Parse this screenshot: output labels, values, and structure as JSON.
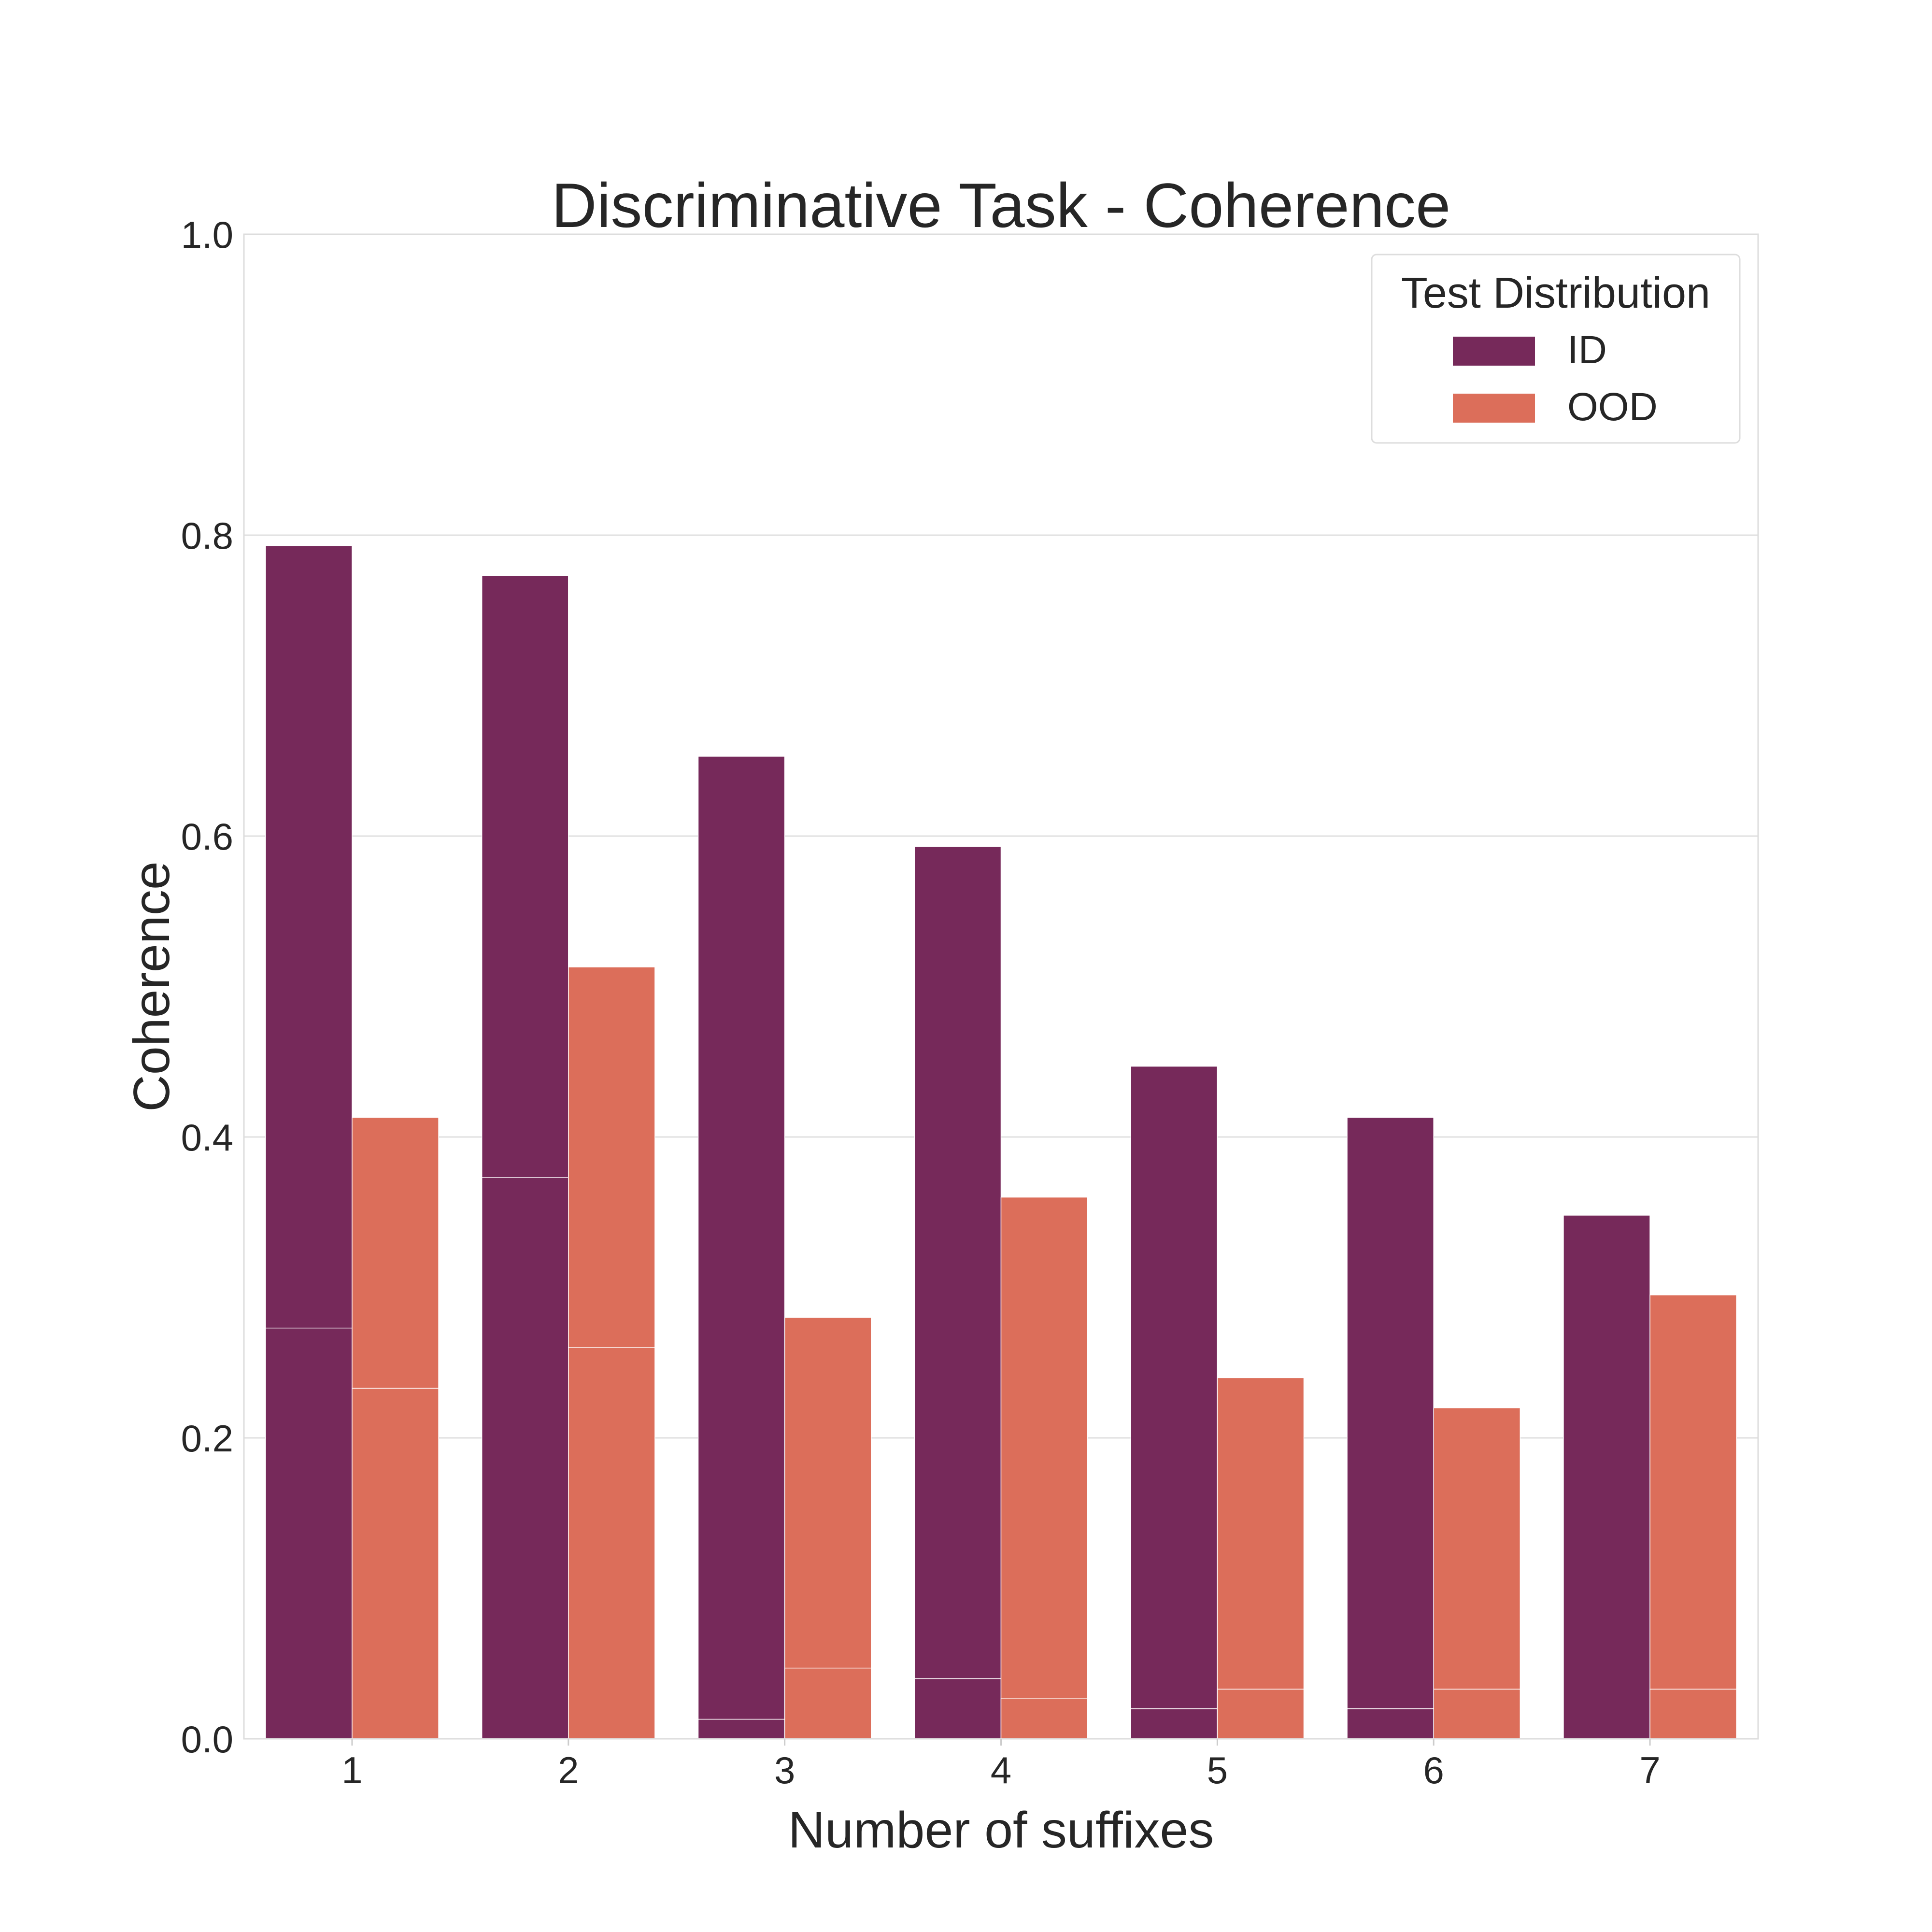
{
  "chart_data": {
    "type": "bar",
    "title": "Discriminative Task - Coherence",
    "xlabel": "Number of suffixes",
    "ylabel": "Coherence",
    "categories": [
      "1",
      "2",
      "3",
      "4",
      "5",
      "6",
      "7"
    ],
    "ylim": [
      0.0,
      1.0
    ],
    "yticks": [
      "0.0",
      "0.2",
      "0.4",
      "0.6",
      "0.8",
      "1.0"
    ],
    "grid": true,
    "legend": {
      "title": "Test Distribution",
      "placement": "top-right"
    },
    "series": [
      {
        "name": "ID",
        "color": "#76295a",
        "values": [
          0.793,
          0.773,
          0.653,
          0.593,
          0.447,
          0.413,
          0.348
        ],
        "inner_values": [
          0.273,
          0.373,
          0.013,
          0.04,
          0.02,
          0.02,
          null
        ]
      },
      {
        "name": "OOD",
        "color": "#dc6e5a",
        "values": [
          0.413,
          0.513,
          0.28,
          0.36,
          0.24,
          0.22,
          0.295
        ],
        "inner_values": [
          0.233,
          0.26,
          0.047,
          0.027,
          0.033,
          0.033,
          0.033
        ]
      }
    ]
  }
}
